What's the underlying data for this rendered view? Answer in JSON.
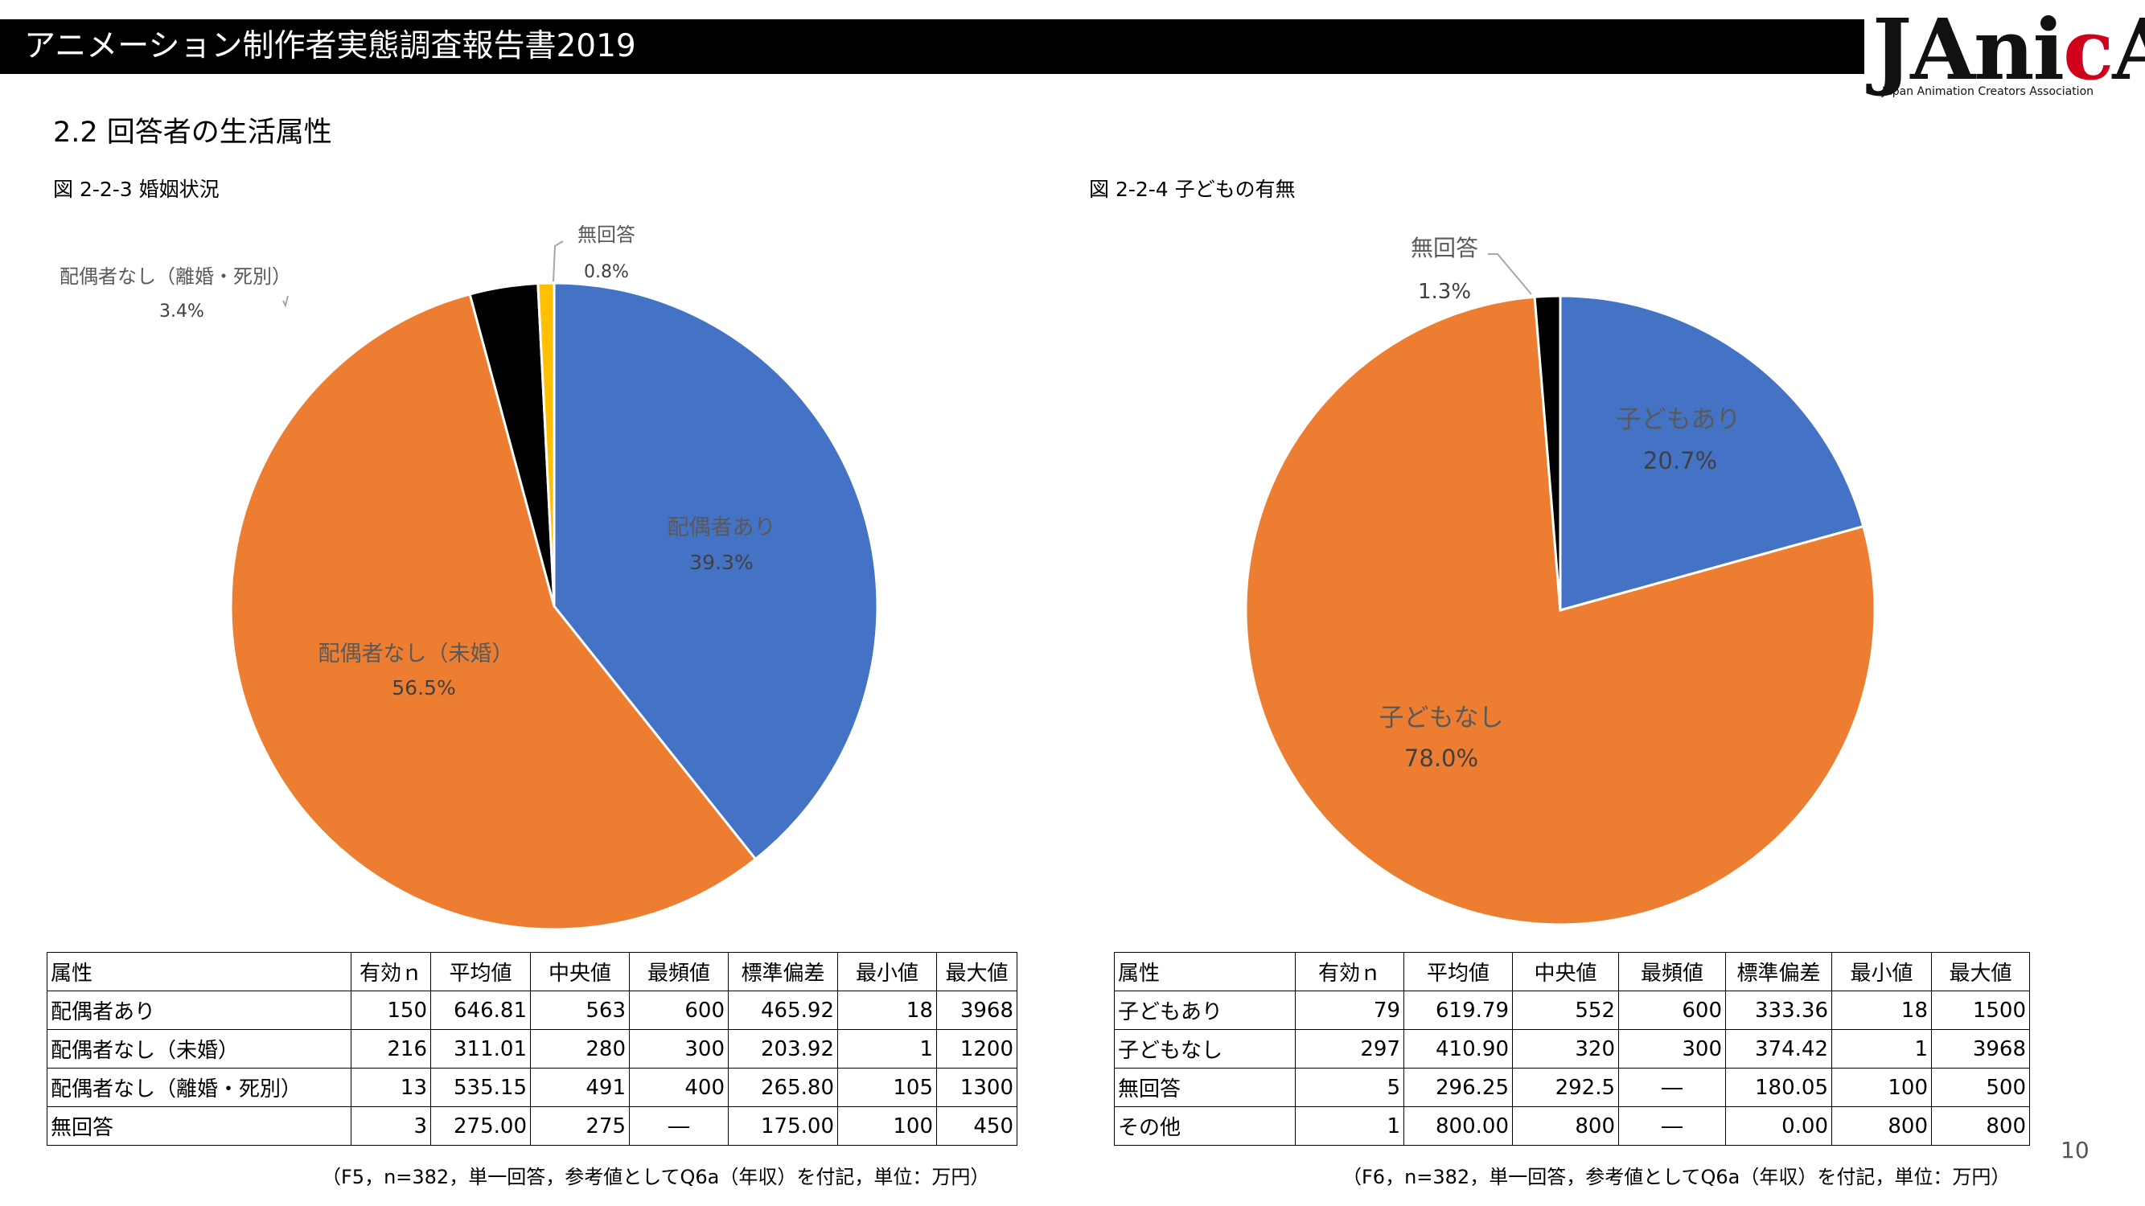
{
  "header": {
    "title": "アニメーション制作者実態調査報告書2019"
  },
  "logo": {
    "main": "JAnicA",
    "sub": "Japan Animation Creators Association"
  },
  "section": {
    "title": "2.2 回答者の生活属性"
  },
  "page_number": "10",
  "colors": {
    "blue": "#4472C4",
    "orange": "#ED7D31",
    "black": "#000000",
    "yellow": "#FFC000"
  },
  "chart_data": [
    {
      "type": "pie",
      "title": "図 2-2-3 婚姻状況",
      "slices": [
        {
          "label": "配偶者あり",
          "value": 39.3,
          "display": "39.3%",
          "color": "#4472C4"
        },
        {
          "label": "配偶者なし（未婚）",
          "value": 56.5,
          "display": "56.5%",
          "color": "#ED7D31"
        },
        {
          "label": "配偶者なし（離婚・死別）",
          "value": 3.4,
          "display": "3.4%",
          "color": "#000000"
        },
        {
          "label": "無回答",
          "value": 0.8,
          "display": "0.8%",
          "color": "#FFC000"
        }
      ]
    },
    {
      "type": "pie",
      "title": "図 2-2-4 子どもの有無",
      "slices": [
        {
          "label": "子どもあり",
          "value": 20.7,
          "display": "20.7%",
          "color": "#4472C4"
        },
        {
          "label": "子どもなし",
          "value": 78.0,
          "display": "78.0%",
          "color": "#ED7D31"
        },
        {
          "label": "無回答",
          "value": 1.3,
          "display": "1.3%",
          "color": "#000000"
        }
      ]
    }
  ],
  "tables": [
    {
      "headers": [
        "属性",
        "有効ｎ",
        "平均値",
        "中央値",
        "最頻値",
        "標準偏差",
        "最小値",
        "最大値"
      ],
      "rows": [
        [
          "配偶者あり",
          "150",
          "646.81",
          "563",
          "600",
          "465.92",
          "18",
          "3968"
        ],
        [
          "配偶者なし（未婚）",
          "216",
          "311.01",
          "280",
          "300",
          "203.92",
          "1",
          "1200"
        ],
        [
          "配偶者なし（離婚・死別）",
          "13",
          "535.15",
          "491",
          "400",
          "265.80",
          "105",
          "1300"
        ],
        [
          "無回答",
          "3",
          "275.00",
          "275",
          "―",
          "175.00",
          "100",
          "450"
        ]
      ],
      "note": "（F5，n=382，単一回答，参考値としてQ6a（年収）を付記，単位：万円）"
    },
    {
      "headers": [
        "属性",
        "有効ｎ",
        "平均値",
        "中央値",
        "最頻値",
        "標準偏差",
        "最小値",
        "最大値"
      ],
      "rows": [
        [
          "子どもあり",
          "79",
          "619.79",
          "552",
          "600",
          "333.36",
          "18",
          "1500"
        ],
        [
          "子どもなし",
          "297",
          "410.90",
          "320",
          "300",
          "374.42",
          "1",
          "3968"
        ],
        [
          "無回答",
          "5",
          "296.25",
          "292.5",
          "―",
          "180.05",
          "100",
          "500"
        ],
        [
          "その他",
          "1",
          "800.00",
          "800",
          "―",
          "0.00",
          "800",
          "800"
        ]
      ],
      "note": "（F6，n=382，単一回答，参考値としてQ6a（年収）を付記，単位：万円）"
    }
  ]
}
